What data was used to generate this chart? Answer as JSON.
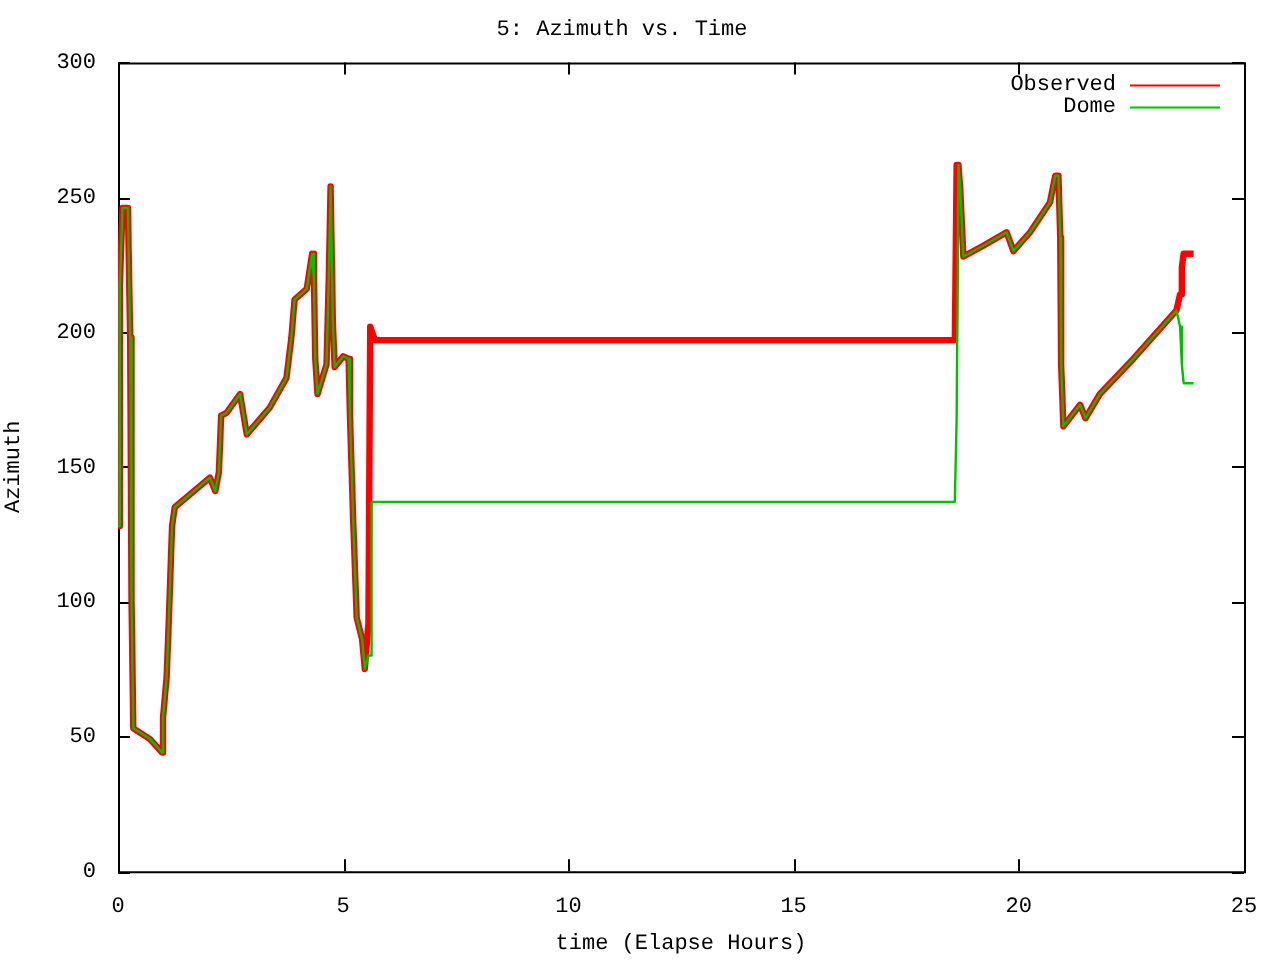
{
  "chart_data": {
    "type": "line",
    "title": "5: Azimuth vs. Time",
    "xlabel": "time (Elapse Hours)",
    "ylabel": "Azimuth",
    "legend": "top right",
    "marker": "none",
    "line_style": "solid",
    "x": [
      0,
      0.04,
      0.1,
      0.22,
      0.27,
      0.3,
      0.34,
      0.71,
      0.98,
      1.0,
      1.08,
      1.13,
      1.2,
      1.26,
      2.04,
      2.16,
      2.24,
      2.29,
      2.41,
      2.71,
      2.86,
      3.37,
      3.74,
      3.85,
      3.92,
      4.19,
      4.31,
      4.35,
      4.38,
      4.43,
      4.63,
      4.68,
      4.72,
      4.77,
      4.81,
      5.0,
      5.12,
      5.15,
      5.22,
      5.3,
      5.42,
      5.48,
      5.56,
      5.6,
      5.63,
      5.7,
      18.58,
      18.62,
      18.66,
      18.7,
      18.77,
      19.21,
      19.73,
      19.88,
      20.25,
      20.69,
      20.81,
      20.88,
      20.92,
      20.94,
      20.99,
      21.36,
      21.48,
      21.8,
      22.54,
      23.5,
      23.58,
      23.62,
      23.66,
      23.88
    ],
    "xlim": [
      0,
      25
    ],
    "xticks": [
      0,
      5,
      10,
      15,
      20,
      25
    ],
    "ylim": [
      0,
      300
    ],
    "yticks": [
      0,
      50,
      100,
      150,
      200,
      250,
      300
    ],
    "series": [
      {
        "name": "Observed",
        "color": "#ff0000",
        "values": [
          128,
          217,
          246,
          246,
          198,
          101,
          53,
          49,
          44,
          57,
          72,
          94,
          128,
          135,
          146,
          141,
          148,
          169,
          170,
          177,
          162,
          172,
          183,
          198,
          212,
          216,
          229,
          219,
          190,
          177,
          188,
          220,
          254,
          204,
          187,
          191,
          190,
          169,
          131,
          94,
          86,
          75,
          92,
          202,
          202,
          197,
          197,
          262,
          262,
          253,
          228,
          232,
          237,
          230,
          237,
          248,
          258,
          258,
          235,
          188,
          165,
          173,
          168,
          177,
          190,
          208,
          214,
          224,
          229,
          229
        ]
      },
      {
        "name": "Dome",
        "color": "#00c000",
        "values": [
          128,
          217,
          246,
          246,
          198,
          101,
          53,
          49,
          44,
          57,
          72,
          94,
          128,
          135,
          146,
          141,
          148,
          169,
          170,
          177,
          162,
          172,
          183,
          198,
          212,
          216,
          229,
          219,
          190,
          177,
          188,
          220,
          254,
          204,
          187,
          191,
          190,
          169,
          131,
          94,
          86,
          75,
          80,
          80,
          137,
          137,
          137,
          168,
          262,
          253,
          228,
          232,
          237,
          230,
          237,
          248,
          258,
          258,
          235,
          188,
          165,
          173,
          168,
          177,
          190,
          208,
          202,
          188,
          181,
          181
        ]
      }
    ]
  }
}
